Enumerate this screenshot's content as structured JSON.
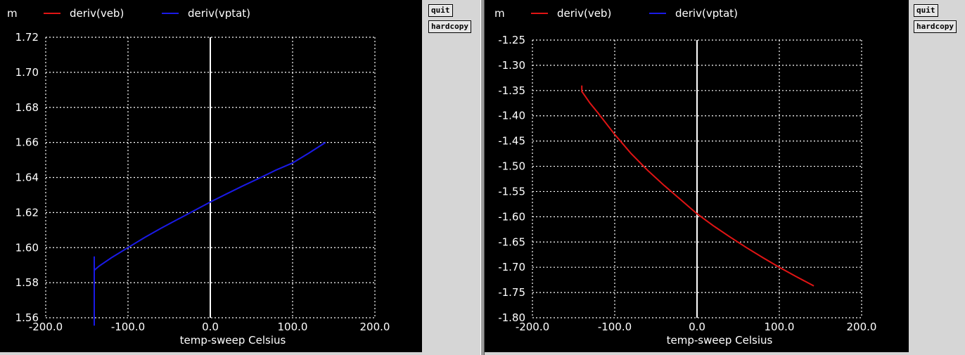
{
  "buttons": {
    "quit_label": "quit",
    "hardcopy_label": "hardcopy"
  },
  "colors": {
    "background": "#000000",
    "grid": "#ffffff",
    "veb": "#e01414",
    "vptat": "#1a1ae6",
    "text": "#ffffff"
  },
  "chart_data": [
    {
      "type": "line",
      "ylabel": "m",
      "xlabel": "temp-sweep  Celsius",
      "xlim": [
        -200,
        200
      ],
      "ylim": [
        1.56,
        1.72
      ],
      "xticks": [
        "-200.0",
        "-100.0",
        "0.0",
        "100.0",
        "200.0"
      ],
      "yticks": [
        "1.72",
        "1.70",
        "1.68",
        "1.66",
        "1.64",
        "1.62",
        "1.60",
        "1.58",
        "1.56"
      ],
      "legend": [
        "deriv(veb)",
        "deriv(vptat)"
      ],
      "series": [
        {
          "name": "deriv(vptat)",
          "color": "#1a1ae6",
          "x": [
            -141,
            -141,
            -141,
            -140,
            -135,
            -120,
            -100,
            -80,
            -60,
            -40,
            -20,
            0,
            20,
            40,
            60,
            80,
            100,
            120,
            140
          ],
          "y": [
            1.5555,
            1.595,
            1.587,
            1.5875,
            1.5895,
            1.5943,
            1.6,
            1.6057,
            1.611,
            1.616,
            1.621,
            1.626,
            1.6307,
            1.6353,
            1.6397,
            1.6443,
            1.6483,
            1.654,
            1.66
          ]
        }
      ]
    },
    {
      "type": "line",
      "ylabel": "m",
      "xlabel": "temp-sweep  Celsius",
      "xlim": [
        -200,
        200
      ],
      "ylim": [
        -1.8,
        -1.25
      ],
      "xticks": [
        "-200.0",
        "-100.0",
        "0.0",
        "100.0",
        "200.0"
      ],
      "yticks": [
        "-1.25",
        "-1.30",
        "-1.35",
        "-1.40",
        "-1.45",
        "-1.50",
        "-1.55",
        "-1.60",
        "-1.65",
        "-1.70",
        "-1.75",
        "-1.80"
      ],
      "legend": [
        "deriv(veb)",
        "deriv(vptat)"
      ],
      "series": [
        {
          "name": "deriv(veb)",
          "color": "#e01414",
          "x": [
            -140,
            -140,
            -139,
            -130,
            -120,
            -100,
            -80,
            -60,
            -40,
            -20,
            0,
            20,
            40,
            60,
            80,
            100,
            120,
            142
          ],
          "y": [
            -1.34,
            -1.352,
            -1.354,
            -1.375,
            -1.395,
            -1.437,
            -1.475,
            -1.508,
            -1.538,
            -1.566,
            -1.594,
            -1.618,
            -1.64,
            -1.661,
            -1.681,
            -1.7,
            -1.718,
            -1.737
          ]
        }
      ]
    }
  ]
}
